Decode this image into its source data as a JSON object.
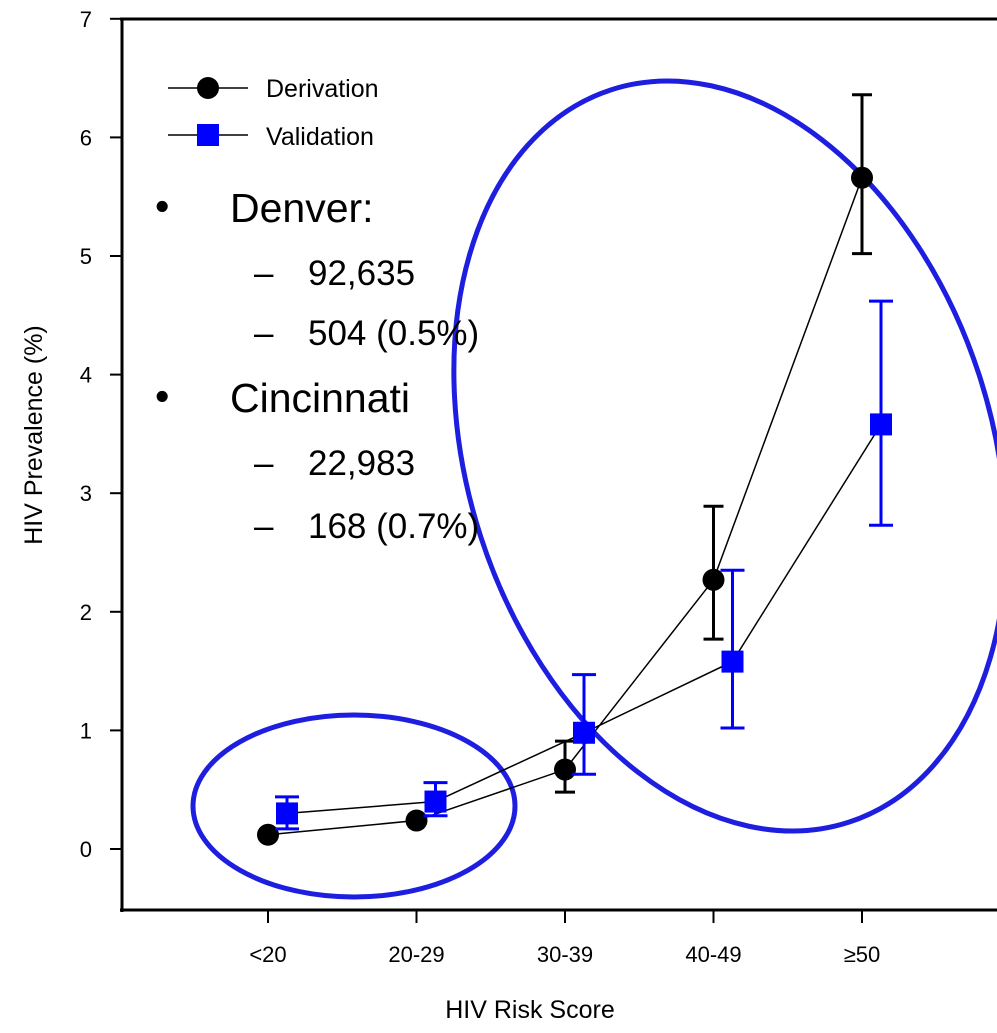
{
  "chart_data": {
    "type": "line",
    "title": "",
    "xlabel": "HIV Risk Score",
    "ylabel": "HIV Prevalence (%)",
    "ylim": [
      -0.6,
      7
    ],
    "yticks": [
      0,
      1,
      2,
      3,
      4,
      5,
      6,
      7
    ],
    "categories": [
      "<20",
      "20-29",
      "30-39",
      "40-49",
      "≥50"
    ],
    "grid": false,
    "legend_position": "top-left",
    "series": [
      {
        "name": "Derivation",
        "marker": "circle",
        "color": "#000000",
        "values": [
          0.12,
          0.24,
          0.67,
          2.27,
          5.66
        ],
        "error_low": [
          null,
          null,
          0.48,
          1.77,
          5.02
        ],
        "error_high": [
          null,
          null,
          0.91,
          2.89,
          6.36
        ]
      },
      {
        "name": "Validation",
        "marker": "square",
        "color": "#0000FF",
        "values": [
          0.3,
          0.4,
          0.98,
          1.58,
          3.58
        ],
        "error_low": [
          0.17,
          0.28,
          0.63,
          1.02,
          2.73
        ],
        "error_high": [
          0.44,
          0.56,
          1.47,
          2.35,
          4.62
        ]
      }
    ],
    "annotations": {
      "sites": [
        {
          "name": "Denver:",
          "items": [
            "92,635",
            "504 (0.5%)"
          ]
        },
        {
          "name": "Cincinnati",
          "items": [
            "22,983",
            "168 (0.7%)"
          ]
        }
      ],
      "bullet": "•",
      "dash": "–",
      "ellipse_color": "#1E1EE0"
    }
  }
}
